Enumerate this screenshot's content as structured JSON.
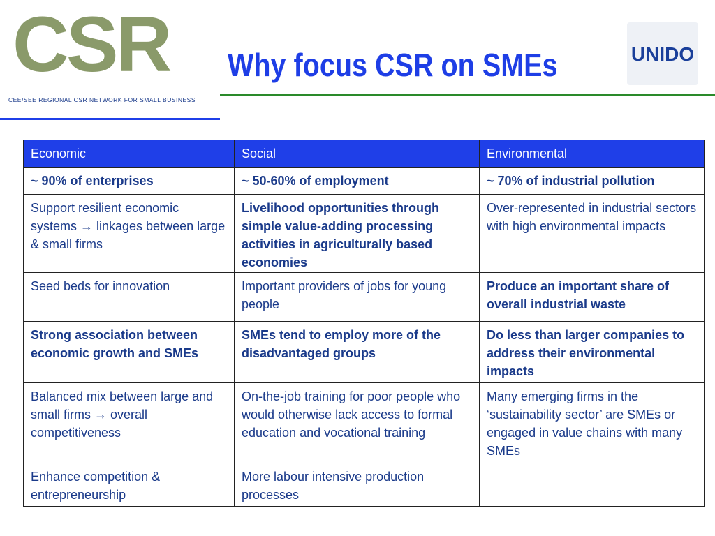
{
  "header": {
    "title": "Why focus CSR on SMEs",
    "logo_text": "CSR",
    "logo_tagline": "CEE/SEE REGIONAL CSR NETWORK FOR SMALL BUSINESS",
    "partner_logo": "UNIDO"
  },
  "table": {
    "columns": [
      "Economic",
      "Social",
      "Environmental"
    ],
    "rows": [
      [
        "~ 90% of enterprises",
        "~ 50-60% of employment",
        "~ 70% of industrial pollution"
      ],
      [
        "Support resilient economic systems → linkages between large & small firms",
        "Livelihood opportunities through simple value-adding processing activities in agriculturally based economies",
        "Over-represented in industrial sectors with high environmental impacts"
      ],
      [
        "Seed beds for innovation",
        "Important providers of jobs for young people",
        "Produce an important share of overall industrial waste"
      ],
      [
        "Strong association between economic growth and SMEs",
        "SMEs tend to employ more of the disadvantaged groups",
        "Do less than larger companies to address their environmental impacts"
      ],
      [
        "Balanced mix between large and small firms → overall competitiveness",
        "On-the-job training for poor people who would otherwise lack access to formal education and vocational training",
        "Many emerging firms in the ‘sustainability sector’ are  SMEs or engaged in value chains with many SMEs"
      ],
      [
        "Enhance competition & entrepreneurship",
        "More labour intensive production processes",
        ""
      ]
    ]
  }
}
